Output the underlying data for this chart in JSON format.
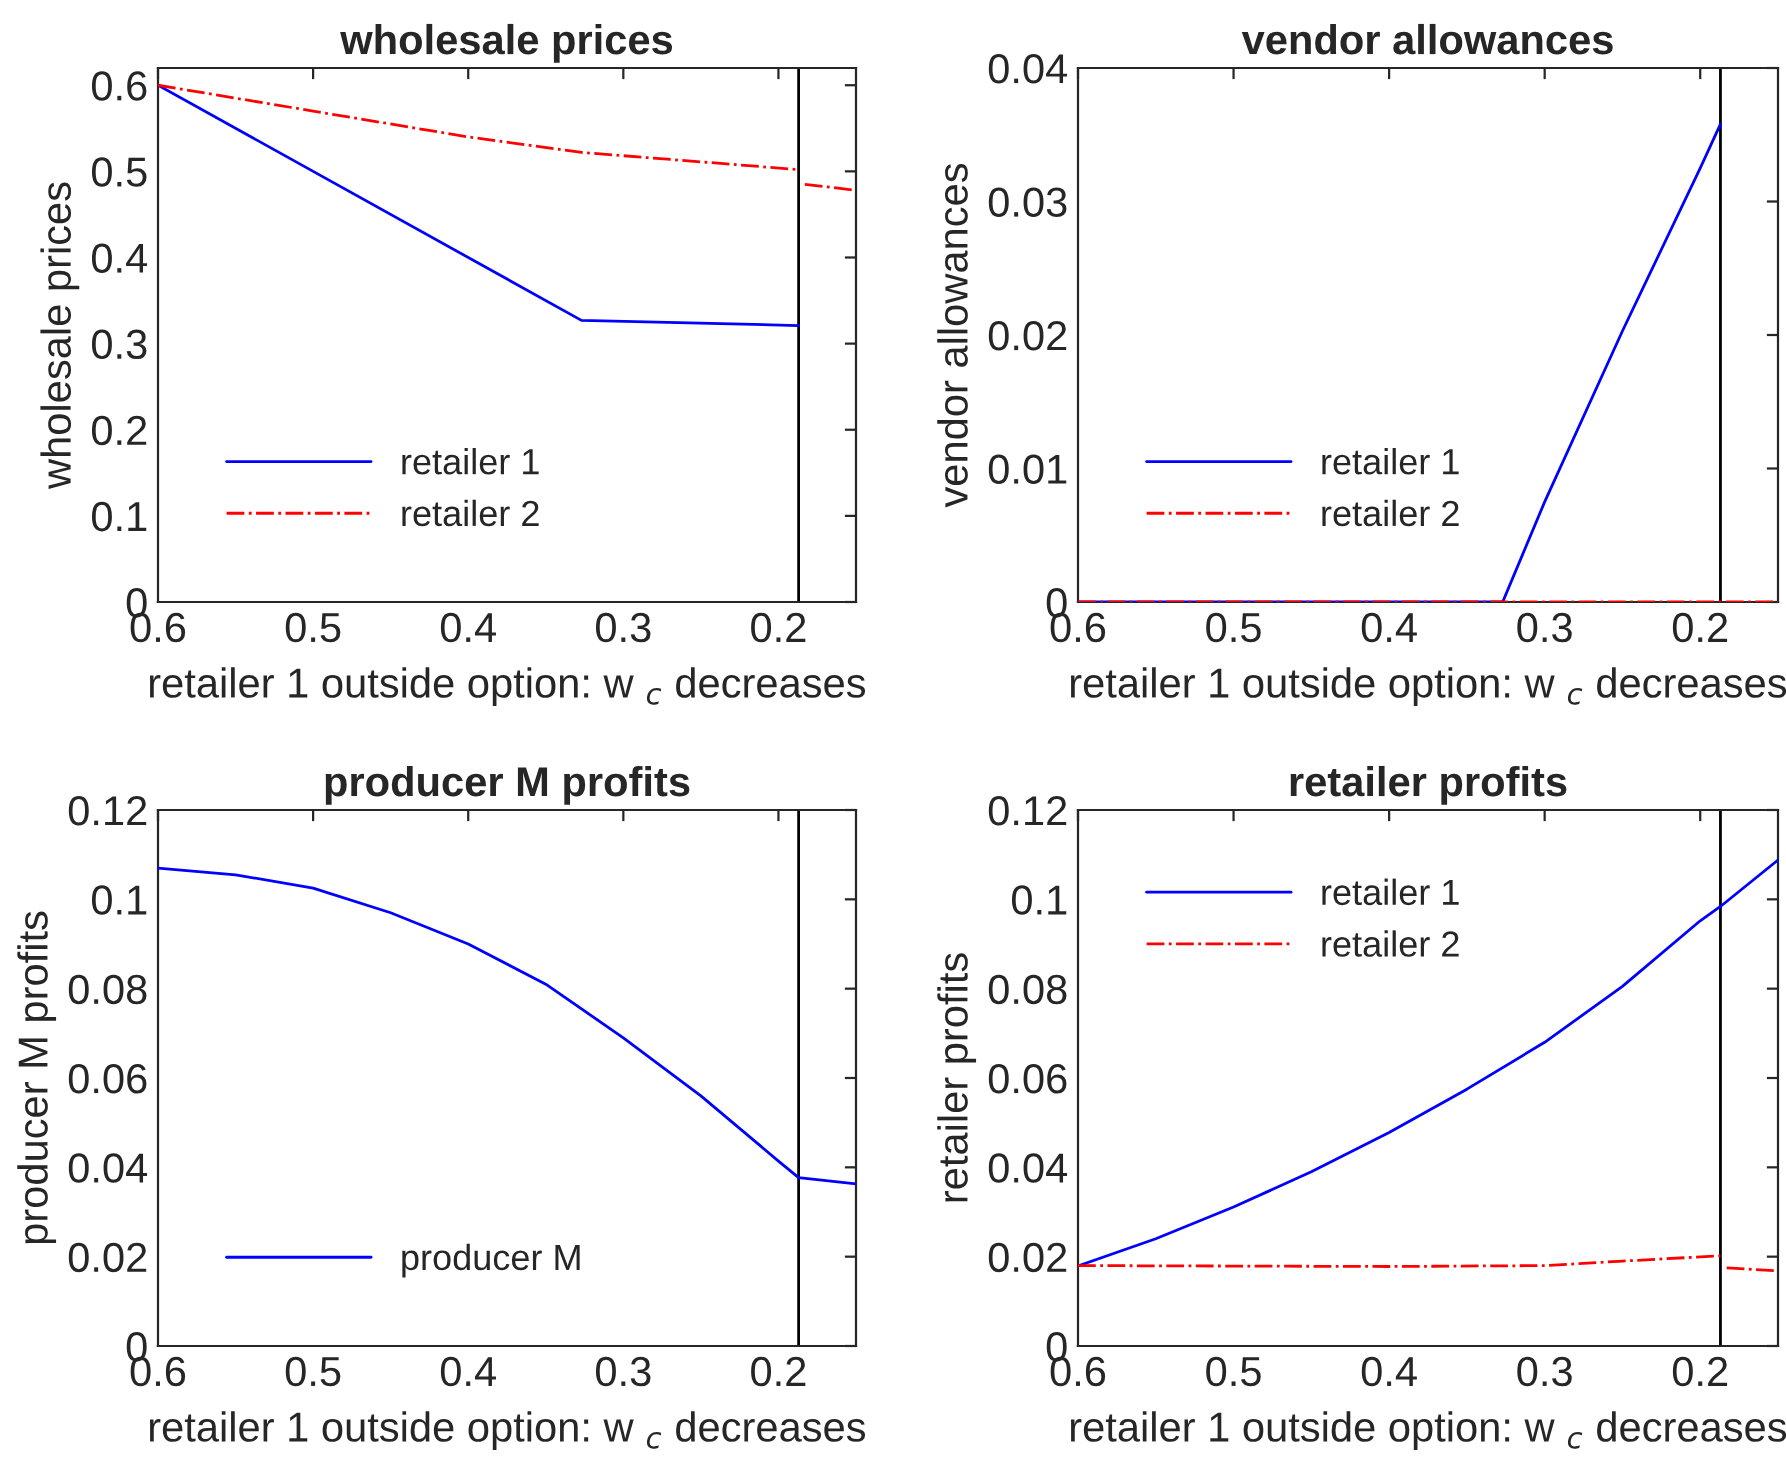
{
  "chart_data": [
    {
      "type": "line",
      "title": "wholesale prices",
      "xlabel": "retailer 1 outside option: w $_{c}$ decreases",
      "ylabel": "wholesale prices",
      "xlim": [
        0.6,
        0.15
      ],
      "xticks": [
        0.6,
        0.5,
        0.4,
        0.3,
        0.2
      ],
      "ylim": [
        0,
        0.62
      ],
      "yticks": [
        0,
        0.1,
        0.2,
        0.3,
        0.4,
        0.5,
        0.6
      ],
      "grid": false,
      "legend": "bottom left",
      "ref_lines": [
        {
          "axis": "x",
          "value": 0.187,
          "color": "#000000"
        }
      ],
      "series": [
        {
          "name": "retailer 1",
          "color": "#0000ff",
          "line_style": "solid",
          "x": [
            0.6,
            0.327,
            0.187
          ],
          "values": [
            0.6,
            0.327,
            0.321
          ]
        },
        {
          "name": "retailer 2",
          "color": "#ff0000",
          "line_style": "dashdot",
          "x": [
            0.6,
            0.5,
            0.4,
            0.327,
            0.187,
            0.185,
            0.183,
            0.15
          ],
          "values": [
            0.6,
            0.57,
            0.54,
            0.522,
            0.502,
            null,
            0.485,
            0.478
          ]
        }
      ]
    },
    {
      "type": "line",
      "title": "vendor allowances",
      "xlabel": "retailer 1 outside option: w $_{c}$ decreases",
      "ylabel": "vendor allowances",
      "xlim": [
        0.6,
        0.15
      ],
      "xticks": [
        0.6,
        0.5,
        0.4,
        0.3,
        0.2
      ],
      "ylim": [
        0,
        0.04
      ],
      "yticks": [
        0,
        0.01,
        0.02,
        0.03,
        0.04
      ],
      "grid": false,
      "legend": "bottom left",
      "ref_lines": [
        {
          "axis": "x",
          "value": 0.187,
          "color": "#000000"
        }
      ],
      "series": [
        {
          "name": "retailer 1",
          "color": "#0000ff",
          "line_style": "solid",
          "x": [
            0.6,
            0.327,
            0.3,
            0.25,
            0.2,
            0.187
          ],
          "values": [
            0,
            0,
            0.0075,
            0.0203,
            0.0325,
            0.0358
          ]
        },
        {
          "name": "retailer 2",
          "color": "#ff0000",
          "line_style": "dashdot",
          "x": [
            0.6,
            0.15
          ],
          "values": [
            0,
            0
          ]
        }
      ]
    },
    {
      "type": "line",
      "title": "producer M profits",
      "xlabel": "retailer 1 outside option: w $_{c}$ decreases",
      "ylabel": "producer M profits",
      "xlim": [
        0.6,
        0.15
      ],
      "xticks": [
        0.6,
        0.5,
        0.4,
        0.3,
        0.2
      ],
      "ylim": [
        0,
        0.12
      ],
      "yticks": [
        0,
        0.02,
        0.04,
        0.06,
        0.08,
        0.1,
        0.12
      ],
      "grid": false,
      "legend": "bottom left",
      "ref_lines": [
        {
          "axis": "x",
          "value": 0.187,
          "color": "#000000"
        }
      ],
      "series": [
        {
          "name": "producer M",
          "color": "#0000ff",
          "line_style": "solid",
          "x": [
            0.6,
            0.55,
            0.5,
            0.45,
            0.4,
            0.35,
            0.3,
            0.25,
            0.2,
            0.187,
            0.15
          ],
          "values": [
            0.107,
            0.1055,
            0.1025,
            0.097,
            0.09,
            0.081,
            0.069,
            0.056,
            0.0414,
            0.0377,
            0.0363
          ]
        }
      ]
    },
    {
      "type": "line",
      "title": "retailer profits",
      "xlabel": "retailer 1 outside option: w $_{c}$ decreases",
      "ylabel": "retailer profits",
      "xlim": [
        0.6,
        0.15
      ],
      "xticks": [
        0.6,
        0.5,
        0.4,
        0.3,
        0.2
      ],
      "ylim": [
        0,
        0.12
      ],
      "yticks": [
        0,
        0.02,
        0.04,
        0.06,
        0.08,
        0.1,
        0.12
      ],
      "grid": false,
      "legend": "top left",
      "ref_lines": [
        {
          "axis": "x",
          "value": 0.187,
          "color": "#000000"
        }
      ],
      "series": [
        {
          "name": "retailer 1",
          "color": "#0000ff",
          "line_style": "solid",
          "x": [
            0.6,
            0.55,
            0.5,
            0.45,
            0.4,
            0.35,
            0.3,
            0.25,
            0.2,
            0.187,
            0.15
          ],
          "values": [
            0.0179,
            0.024,
            0.0311,
            0.039,
            0.0478,
            0.0575,
            0.068,
            0.0805,
            0.0952,
            0.0984,
            0.1088
          ]
        },
        {
          "name": "retailer 2",
          "color": "#ff0000",
          "line_style": "dashdot",
          "x": [
            0.6,
            0.5,
            0.4,
            0.3,
            0.25,
            0.187,
            0.185,
            0.183,
            0.15
          ],
          "values": [
            0.018,
            0.0179,
            0.0178,
            0.018,
            0.019,
            0.0202,
            null,
            0.0175,
            0.0168
          ]
        }
      ]
    }
  ]
}
